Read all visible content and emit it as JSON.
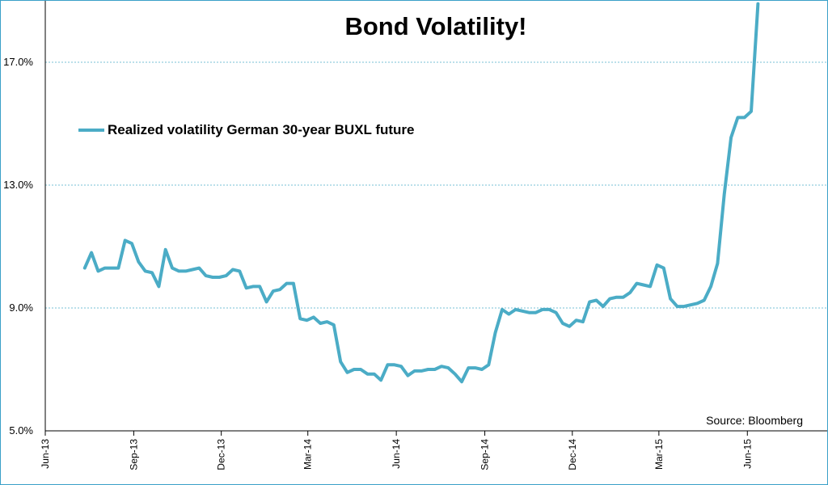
{
  "chart_data": {
    "type": "line",
    "title": "Bond Volatility!",
    "source": "Source: Bloomberg",
    "xlabel": "",
    "ylabel": "",
    "ylim": [
      5.0,
      19.0
    ],
    "y_ticks": [
      "5.0%",
      "9.0%",
      "13.0%",
      "17.0%"
    ],
    "y_tick_values": [
      5.0,
      9.0,
      13.0,
      17.0
    ],
    "x_ticks": [
      "Jun-13",
      "Sep-13",
      "Dec-13",
      "Mar-14",
      "Jun-14",
      "Sep-14",
      "Dec-14",
      "Mar-15",
      "Jun-15"
    ],
    "x_start": "2013-06-01",
    "x_end": "2015-08-23",
    "grid": "horizontal-dotted",
    "legend_position": "upper-left",
    "series": [
      {
        "name": "Realized volatility German 30-year BUXL future",
        "color": "#4bacc6",
        "x": [
          "2013-07-12",
          "2013-07-19",
          "2013-07-26",
          "2013-08-02",
          "2013-08-09",
          "2013-08-16",
          "2013-08-23",
          "2013-08-30",
          "2013-09-06",
          "2013-09-13",
          "2013-09-20",
          "2013-09-27",
          "2013-10-04",
          "2013-10-11",
          "2013-10-18",
          "2013-10-25",
          "2013-11-01",
          "2013-11-08",
          "2013-11-15",
          "2013-11-22",
          "2013-11-29",
          "2013-12-06",
          "2013-12-13",
          "2013-12-20",
          "2013-12-27",
          "2014-01-03",
          "2014-01-10",
          "2014-01-17",
          "2014-01-24",
          "2014-01-31",
          "2014-02-07",
          "2014-02-14",
          "2014-02-21",
          "2014-02-28",
          "2014-03-07",
          "2014-03-14",
          "2014-03-21",
          "2014-03-28",
          "2014-04-04",
          "2014-04-11",
          "2014-04-18",
          "2014-04-25",
          "2014-05-02",
          "2014-05-09",
          "2014-05-16",
          "2014-05-23",
          "2014-05-30",
          "2014-06-06",
          "2014-06-13",
          "2014-06-20",
          "2014-06-27",
          "2014-07-04",
          "2014-07-11",
          "2014-07-18",
          "2014-07-25",
          "2014-08-01",
          "2014-08-08",
          "2014-08-15",
          "2014-08-22",
          "2014-08-29",
          "2014-09-05",
          "2014-09-12",
          "2014-09-19",
          "2014-09-26",
          "2014-10-03",
          "2014-10-10",
          "2014-10-17",
          "2014-10-24",
          "2014-10-31",
          "2014-11-07",
          "2014-11-14",
          "2014-11-21",
          "2014-11-28",
          "2014-12-05",
          "2014-12-12",
          "2014-12-19",
          "2014-12-26",
          "2015-01-02",
          "2015-01-09",
          "2015-01-16",
          "2015-01-23",
          "2015-01-30",
          "2015-02-06",
          "2015-02-13",
          "2015-02-20",
          "2015-02-27",
          "2015-03-06",
          "2015-03-13",
          "2015-03-20",
          "2015-03-27",
          "2015-04-03",
          "2015-04-10",
          "2015-04-17",
          "2015-04-24",
          "2015-05-01",
          "2015-05-08",
          "2015-05-15",
          "2015-05-22",
          "2015-05-29",
          "2015-06-05",
          "2015-06-12"
        ],
        "values": [
          10.3,
          10.8,
          10.2,
          10.3,
          10.3,
          10.3,
          11.2,
          11.1,
          10.5,
          10.2,
          10.15,
          9.7,
          10.9,
          10.3,
          10.2,
          10.2,
          10.25,
          10.3,
          10.05,
          10.0,
          10.0,
          10.05,
          10.25,
          10.2,
          9.65,
          9.7,
          9.7,
          9.2,
          9.55,
          9.6,
          9.8,
          9.8,
          8.65,
          8.6,
          8.7,
          8.5,
          8.55,
          8.45,
          7.25,
          6.9,
          7.0,
          7.0,
          6.85,
          6.85,
          6.65,
          7.15,
          7.15,
          7.1,
          6.8,
          6.95,
          6.95,
          7.0,
          7.0,
          7.1,
          7.05,
          6.85,
          6.6,
          7.05,
          7.05,
          7.0,
          7.15,
          8.2,
          8.95,
          8.8,
          8.95,
          8.9,
          8.85,
          8.85,
          8.95,
          8.95,
          8.85,
          8.5,
          8.4,
          8.6,
          8.55,
          9.2,
          9.25,
          9.05,
          9.3,
          9.35,
          9.35,
          9.5,
          9.8,
          9.75,
          9.7,
          10.4,
          10.3,
          9.3,
          9.05,
          9.05,
          9.1,
          9.15,
          9.25,
          9.7,
          10.45,
          12.7,
          14.55,
          15.2,
          15.2,
          15.4,
          18.9
        ]
      }
    ]
  }
}
